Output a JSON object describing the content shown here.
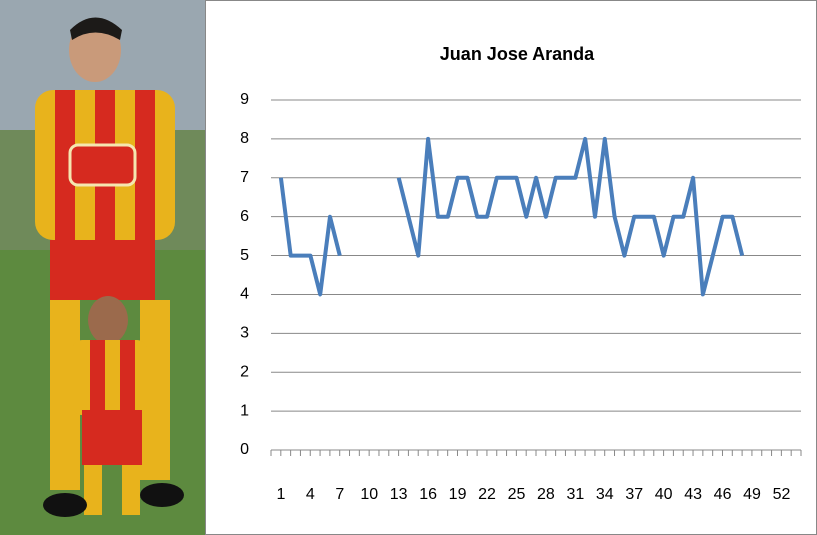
{
  "chart_data": {
    "type": "line",
    "title": "Juan Jose Aranda",
    "categories": [
      1,
      null,
      null,
      4,
      null,
      null,
      7,
      null,
      null,
      10,
      null,
      null,
      13,
      null,
      null,
      16,
      null,
      null,
      19,
      null,
      null,
      22,
      null,
      null,
      25,
      null,
      null,
      28,
      null,
      null,
      31,
      null,
      null,
      34,
      null,
      null,
      37,
      null,
      null,
      40,
      null,
      null,
      43,
      null,
      null,
      46,
      null,
      null,
      49,
      null,
      null,
      52,
      null,
      null
    ],
    "series": [
      {
        "color": "#4a7ebb",
        "values": [
          7,
          5,
          5,
          5,
          4,
          6,
          5,
          null,
          null,
          null,
          null,
          null,
          7,
          6,
          5,
          8,
          6,
          6,
          7,
          7,
          6,
          6,
          7,
          7,
          7,
          6,
          7,
          6,
          7,
          7,
          7,
          8,
          6,
          8,
          6,
          5,
          6,
          6,
          6,
          5,
          6,
          6,
          7,
          4,
          5,
          6,
          6,
          5,
          null,
          null,
          null,
          null,
          null,
          null
        ]
      }
    ],
    "ylim": [
      0,
      9
    ],
    "yticks": [
      0,
      1,
      2,
      3,
      4,
      5,
      6,
      7,
      8,
      9
    ],
    "grid": true
  }
}
